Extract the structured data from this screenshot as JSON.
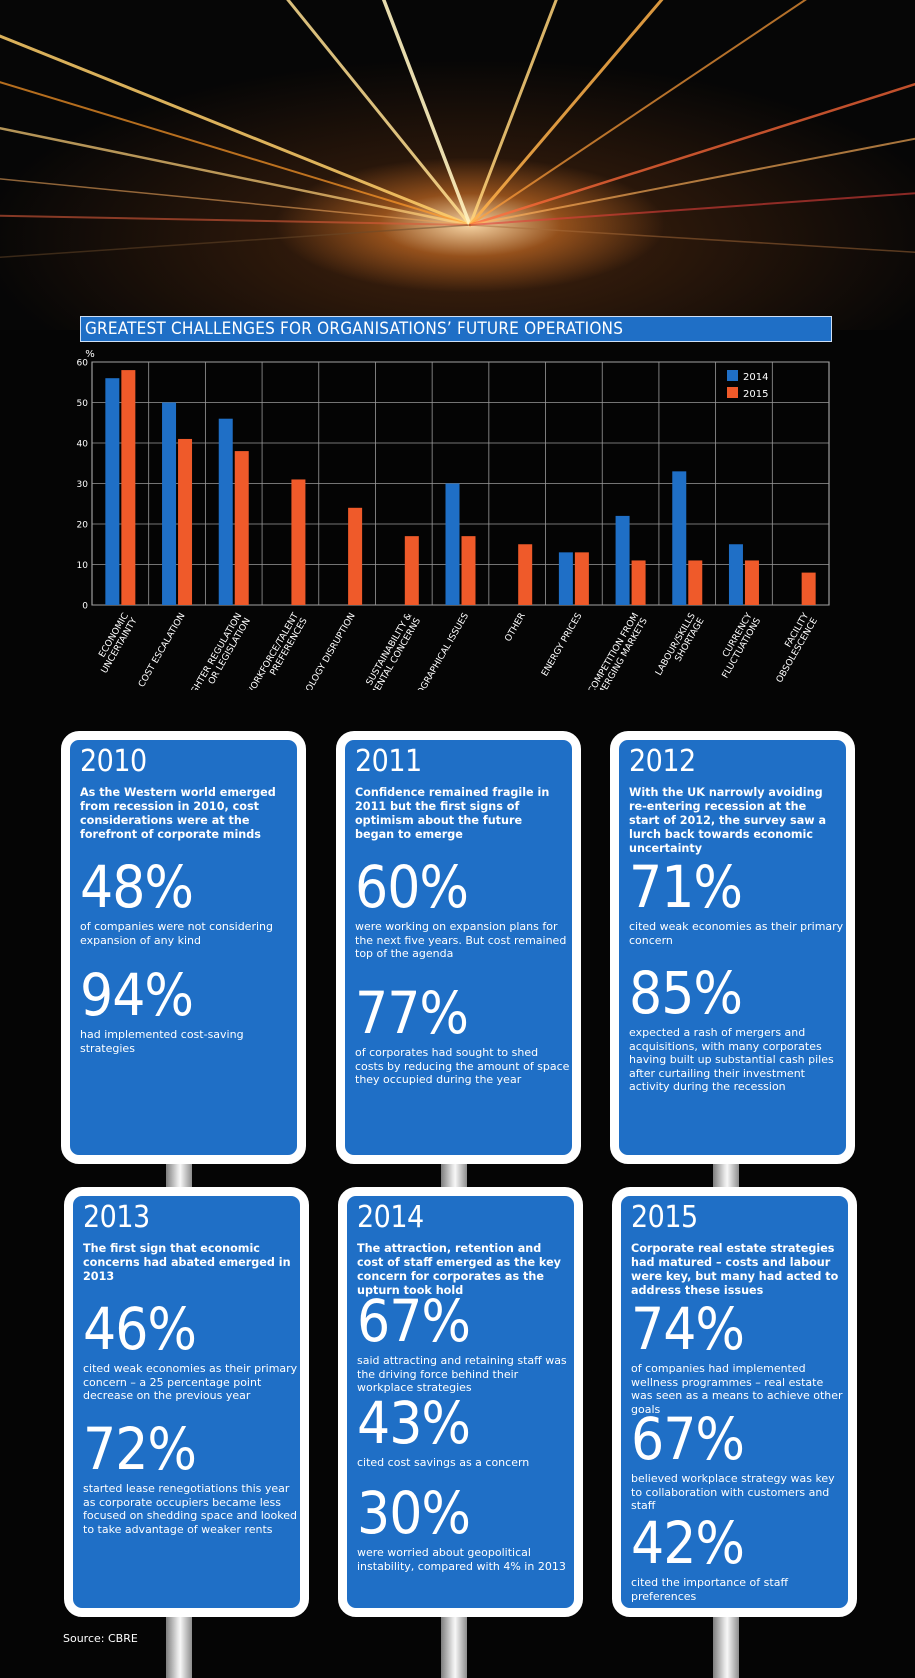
{
  "chart_data": {
    "type": "bar",
    "title": "GREATEST CHALLENGES FOR ORGANISATIONS’ FUTURE OPERATIONS",
    "ylabel": "%",
    "ylim": [
      0,
      60
    ],
    "yticks": [
      "0",
      "10",
      "20",
      "30",
      "40",
      "50",
      "60"
    ],
    "grid": true,
    "legend_position": "top-right",
    "categories": [
      [
        "ECONOMIC",
        "UNCERTAINTY"
      ],
      [
        "COST ESCALATION"
      ],
      [
        "TIGHTER REGULATION",
        "OR LEGISLATION"
      ],
      [
        "WORKFORCE/TALENT",
        "PREFERENCES"
      ],
      [
        "TECHNOLOGY DISRUPTION"
      ],
      [
        "SUSTAINABILITY &",
        "ENVIRONMENTAL CONCERNS"
      ],
      [
        "GEOGRAPHICAL ISSUES"
      ],
      [
        "OTHER"
      ],
      [
        "ENERGY PRICES"
      ],
      [
        "COMPETITION FROM",
        "EMERGING MARKETS"
      ],
      [
        "LABOUR/SKILLS",
        "SHORTAGE"
      ],
      [
        "CURRENCY",
        "FLUCTUATIONS"
      ],
      [
        "FACILITY",
        "OBSOLESCENCE"
      ]
    ],
    "series": [
      {
        "name": "2014",
        "color": "#1f6fc6",
        "values": [
          56,
          50,
          46,
          null,
          null,
          null,
          30,
          null,
          13,
          22,
          33,
          15,
          null
        ]
      },
      {
        "name": "2015",
        "color": "#ef5a2a",
        "values": [
          58,
          41,
          38,
          31,
          24,
          17,
          17,
          15,
          13,
          11,
          11,
          11,
          8
        ]
      }
    ]
  },
  "signs": [
    {
      "year": "2010",
      "intro": "As the Western world emerged from recession in 2010, cost considerations were at the forefront of corporate minds",
      "stats": [
        {
          "value": "48%",
          "desc": "of companies were not considering expansion of any kind"
        },
        {
          "value": "94%",
          "desc": "had implemented cost-saving strategies"
        }
      ]
    },
    {
      "year": "2011",
      "intro": "Confidence remained fragile in 2011 but the first signs of optimism about the future began to emerge",
      "stats": [
        {
          "value": "60%",
          "desc": "were working on expansion plans for the next five years. But cost remained top of the agenda"
        },
        {
          "value": "77%",
          "desc": "of corporates had sought to shed costs by reducing the amount of space they occupied during the year"
        }
      ]
    },
    {
      "year": "2012",
      "intro": "With the UK narrowly avoiding re-entering recession at the start of 2012, the survey saw a lurch back towards economic uncertainty",
      "stats": [
        {
          "value": "71%",
          "desc": "cited weak economies as their primary concern"
        },
        {
          "value": "85%",
          "desc": "expected a rash of mergers and acquisitions, with many corporates having built up substantial cash piles after curtailing their investment activity during the recession"
        }
      ]
    },
    {
      "year": "2013",
      "intro": "The first sign that economic concerns had abated emerged in 2013",
      "stats": [
        {
          "value": "46%",
          "desc": "cited weak economies as their primary concern – a 25 percentage point decrease on the previous year"
        },
        {
          "value": "72%",
          "desc": "started lease renegotiations this year as corporate occupiers became less focused on shedding space and looked to take advantage of weaker rents"
        }
      ]
    },
    {
      "year": "2014",
      "intro": "The attraction, retention and cost of staff emerged as the key concern for corporates as the upturn took hold",
      "stats": [
        {
          "value": "67%",
          "desc": "said attracting and retaining staff was the driving force behind their workplace strategies"
        },
        {
          "value": "43%",
          "desc": "cited cost savings as a concern"
        },
        {
          "value": "30%",
          "desc": "were worried about geopolitical instability, compared with 4% in 2013"
        }
      ]
    },
    {
      "year": "2015",
      "intro": "Corporate real estate strategies had matured – costs and labour were key, but many had acted to address these issues",
      "stats": [
        {
          "value": "74%",
          "desc": "of companies had implemented wellness programmes – real estate was seen as a means to achieve other goals"
        },
        {
          "value": "67%",
          "desc": "believed workplace strategy was key to collaboration with customers and staff"
        },
        {
          "value": "42%",
          "desc": "cited the importance of staff preferences"
        }
      ]
    }
  ],
  "source": "Source: CBRE"
}
